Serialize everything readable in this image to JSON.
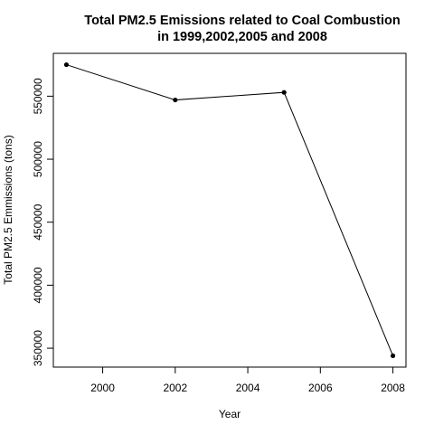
{
  "chart_data": {
    "type": "line",
    "title_lines": [
      "Total PM2.5 Emissions related to Coal Combustion",
      "in 1999,2002,2005 and 2008"
    ],
    "xlabel": "Year",
    "ylabel": "Total PM2.5 Emmissions (tons)",
    "x": [
      1999,
      2002,
      2005,
      2008
    ],
    "y": [
      575000,
      547000,
      553000,
      344000
    ],
    "xlim": [
      1998.64,
      2008.36
    ],
    "ylim": [
      335000,
      584000
    ],
    "x_ticks": [
      2000,
      2002,
      2004,
      2006,
      2008
    ],
    "x_tick_labels": [
      "2000",
      "2002",
      "2004",
      "2006",
      "2008"
    ],
    "y_ticks": [
      350000,
      400000,
      450000,
      500000,
      550000
    ],
    "y_tick_labels": [
      "350000",
      "400000",
      "450000",
      "500000",
      "550000"
    ],
    "grid": false,
    "line_color": "#000000",
    "point_color": "#000000"
  }
}
